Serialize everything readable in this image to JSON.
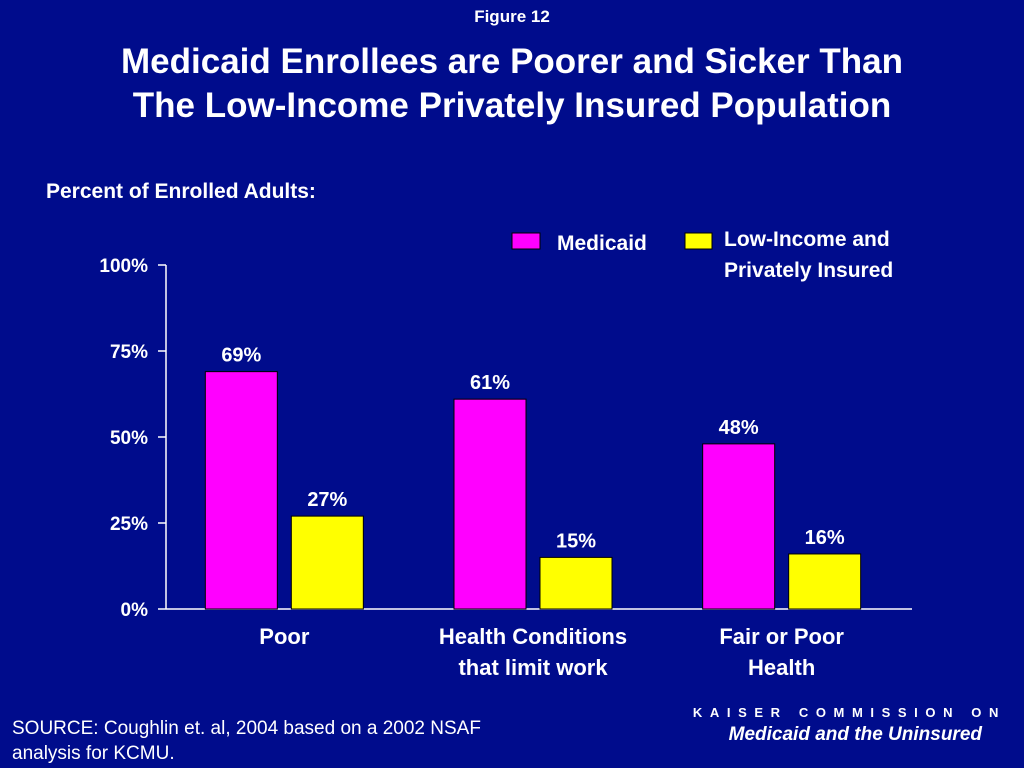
{
  "figure_label": "Figure 12",
  "title_line1": "Medicaid Enrollees are Poorer and Sicker Than",
  "title_line2": "The Low-Income Privately Insured Population",
  "subtitle": "Percent of Enrolled Adults:",
  "source_line1": "SOURCE:  Coughlin et. al, 2004 based on a 2002 NSAF",
  "source_line2": "analysis for KCMU.",
  "footer": {
    "line1": "KAISER COMMISSION ON",
    "line2": "Medicaid and the Uninsured"
  },
  "chart_data": {
    "type": "bar",
    "categories": [
      [
        "Poor"
      ],
      [
        "Health Conditions",
        "that limit work"
      ],
      [
        "Fair or Poor",
        "Health"
      ]
    ],
    "series": [
      {
        "name": "Medicaid",
        "values": [
          69,
          61,
          48
        ],
        "color": "#ff00ff"
      },
      {
        "name": "Low-Income and Privately Insured",
        "legend_lines": [
          "Low-Income and",
          "Privately Insured"
        ],
        "values": [
          27,
          15,
          16
        ],
        "color": "#ffff00"
      }
    ],
    "data_labels": [
      [
        "69%",
        "61%",
        "48%"
      ],
      [
        "27%",
        "15%",
        "16%"
      ]
    ],
    "yticks": [
      "0%",
      "25%",
      "50%",
      "75%",
      "100%"
    ],
    "ylim": [
      0,
      100
    ],
    "legend_position": "top-right",
    "grid": false
  },
  "colors": {
    "background": "#000c8c",
    "text": "#ffffff",
    "axis": "#ffffff",
    "medicaid": "#ff00ff",
    "private": "#ffff00"
  }
}
